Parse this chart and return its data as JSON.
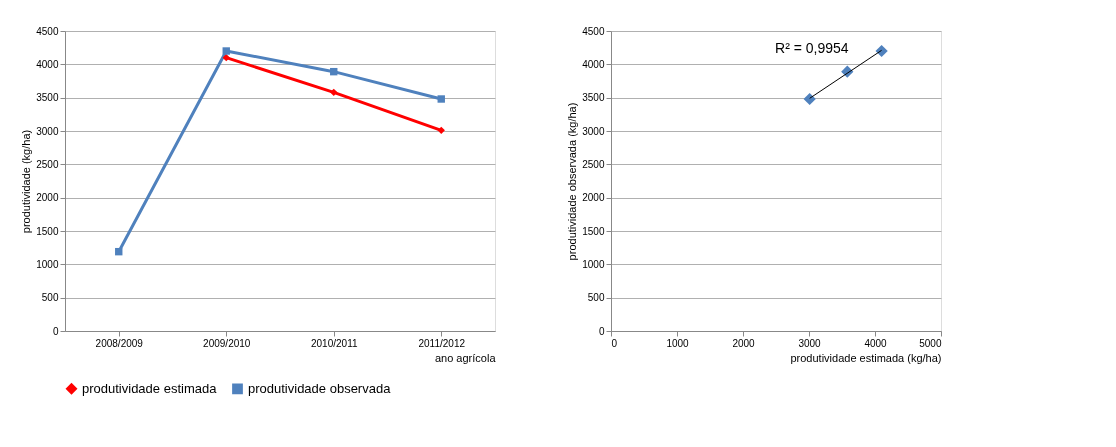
{
  "chart_data": [
    {
      "type": "line",
      "xlabel": "ano agrícola",
      "ylabel": "produtividade  (kg/ha)",
      "categories": [
        "2008/2009",
        "2009/2010",
        "2010/2011",
        "2011/2012"
      ],
      "series": [
        {
          "name": "produtividade estimada",
          "color": "#ff0000",
          "marker": "diamond",
          "values": [
            null,
            4100,
            3580,
            3010
          ]
        },
        {
          "name": "produtividade observada",
          "color": "#4f81bd",
          "marker": "square",
          "values": [
            1190,
            4200,
            3890,
            3480
          ]
        }
      ],
      "ylim": [
        0,
        4500
      ],
      "yticks": [
        0,
        500,
        1000,
        1500,
        2000,
        2500,
        3000,
        3500,
        4000,
        4500
      ],
      "grid": "y",
      "legend": "bottom",
      "line_style": "solid"
    },
    {
      "type": "scatter",
      "xlabel": "produtividade estimada  (kg/ha)",
      "ylabel": "produtividade observada  (kg/ha)",
      "series": [
        {
          "color": "#4f81bd",
          "marker": "diamond",
          "x": [
            3010,
            3580,
            4100
          ],
          "values": [
            3480,
            3890,
            4200
          ]
        },
        {
          "type": "line",
          "color": "#000000",
          "marker": "none",
          "x": [
            3010,
            4100
          ],
          "values": [
            3490,
            4210
          ]
        }
      ],
      "annotations": [
        "R² = 0,9954"
      ],
      "xlim": [
        0,
        5000
      ],
      "xticks": [
        0,
        1000,
        2000,
        3000,
        4000,
        5000
      ],
      "ylim": [
        0,
        4500
      ],
      "yticks": [
        0,
        500,
        1000,
        1500,
        2000,
        2500,
        3000,
        3500,
        4000,
        4500
      ],
      "grid": "y",
      "legend": false
    }
  ]
}
